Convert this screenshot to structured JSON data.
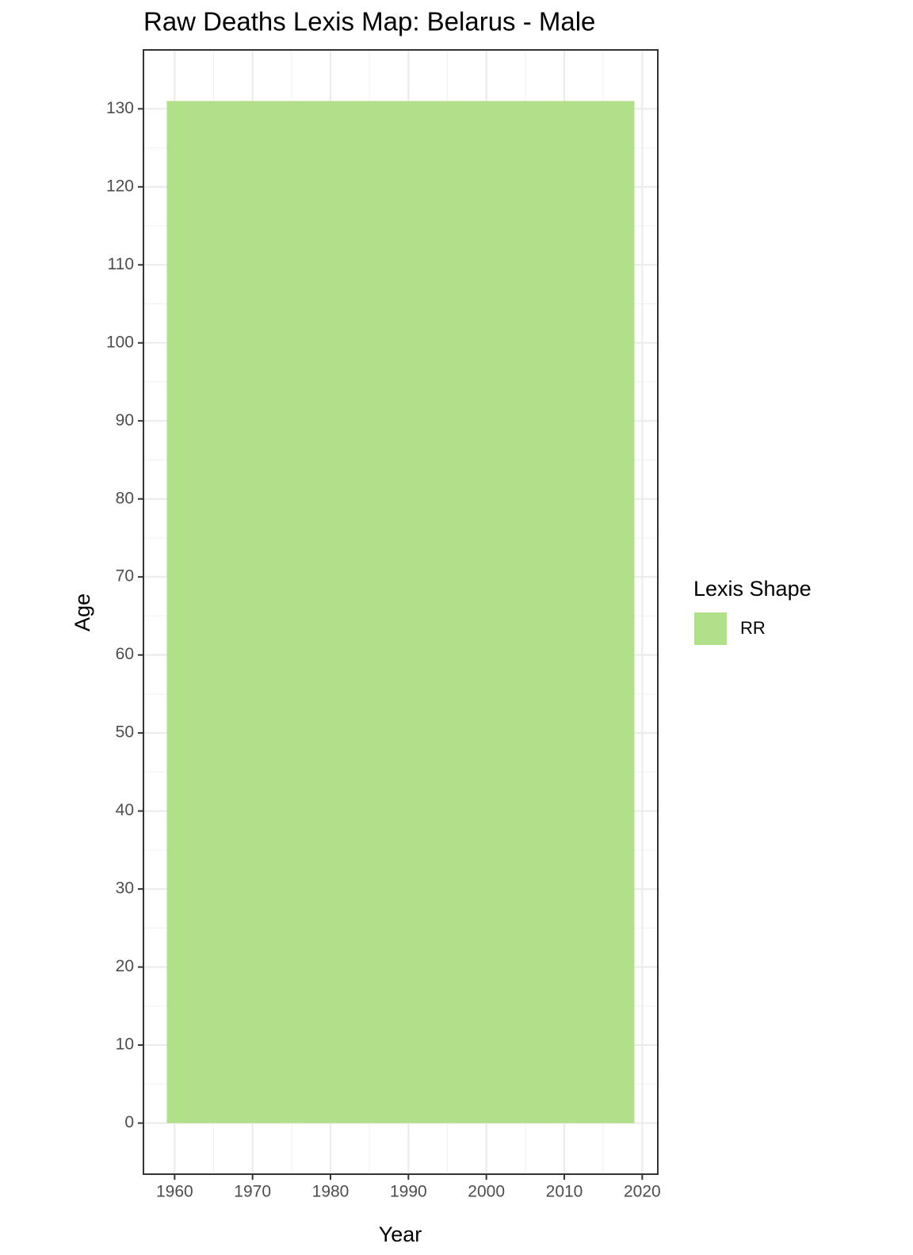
{
  "chart_data": {
    "type": "rect",
    "title": "Raw Deaths Lexis Map: Belarus - Male",
    "x_label": "Year",
    "y_label": "Age",
    "legend_title": "Lexis Shape",
    "series": [
      {
        "name": "RR",
        "color": "#b2df8a",
        "x": [
          1959,
          2019
        ],
        "y": [
          0,
          131
        ]
      }
    ],
    "xlim": [
      1956,
      2022
    ],
    "xticks": [
      1960,
      1970,
      1980,
      1990,
      2000,
      2010,
      2020
    ],
    "ylim": [
      -6.55,
      137.55
    ],
    "yticks": [
      0,
      10,
      20,
      30,
      40,
      50,
      60,
      70,
      80,
      90,
      100,
      110,
      120,
      130
    ],
    "grid": true
  }
}
